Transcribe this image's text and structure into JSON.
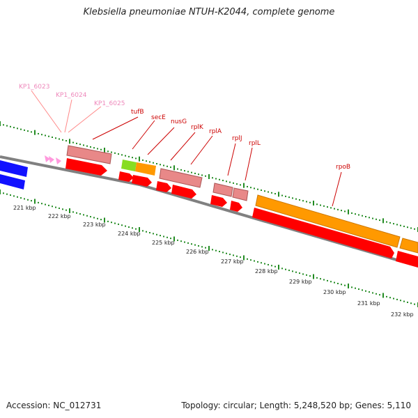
{
  "title": "Klebsiella pneumoniae NTUH-K2044, complete genome",
  "accession_text": "Accession: NC_012731",
  "summary_text": "Topology: circular; Length: 5,248,520 bp; Genes: 5,110",
  "colors": {
    "backbone": "#808080",
    "tick": "#228B22",
    "gene_label": "#cc0000",
    "pseudo_label": "#ee88bb",
    "cds_red": "#ff0000",
    "rna_pink": "#e88888",
    "rpoB_orange": "#ff9900",
    "secE_green": "#88dd22",
    "blue": "#1111ff",
    "pink_arrow": "#ff99dd"
  },
  "kbp_labels": [
    "221 kbp",
    "222 kbp",
    "223 kbp",
    "224 kbp",
    "225 kbp",
    "226 kbp",
    "227 kbp",
    "228 kbp",
    "229 kbp",
    "230 kbp",
    "231 kbp",
    "232 kbp"
  ],
  "gene_labels": [
    {
      "text": "tufB",
      "color": "red"
    },
    {
      "text": "secE",
      "color": "red"
    },
    {
      "text": "nusG",
      "color": "red"
    },
    {
      "text": "rplK",
      "color": "red"
    },
    {
      "text": "rplA",
      "color": "red"
    },
    {
      "text": "rplJ",
      "color": "red"
    },
    {
      "text": "rplL",
      "color": "red"
    },
    {
      "text": "rpoB",
      "color": "red"
    },
    {
      "text": "KP1_6023",
      "color": "pink"
    },
    {
      "text": "KP1_6024",
      "color": "pink"
    },
    {
      "text": "KP1_6025",
      "color": "pink"
    }
  ]
}
